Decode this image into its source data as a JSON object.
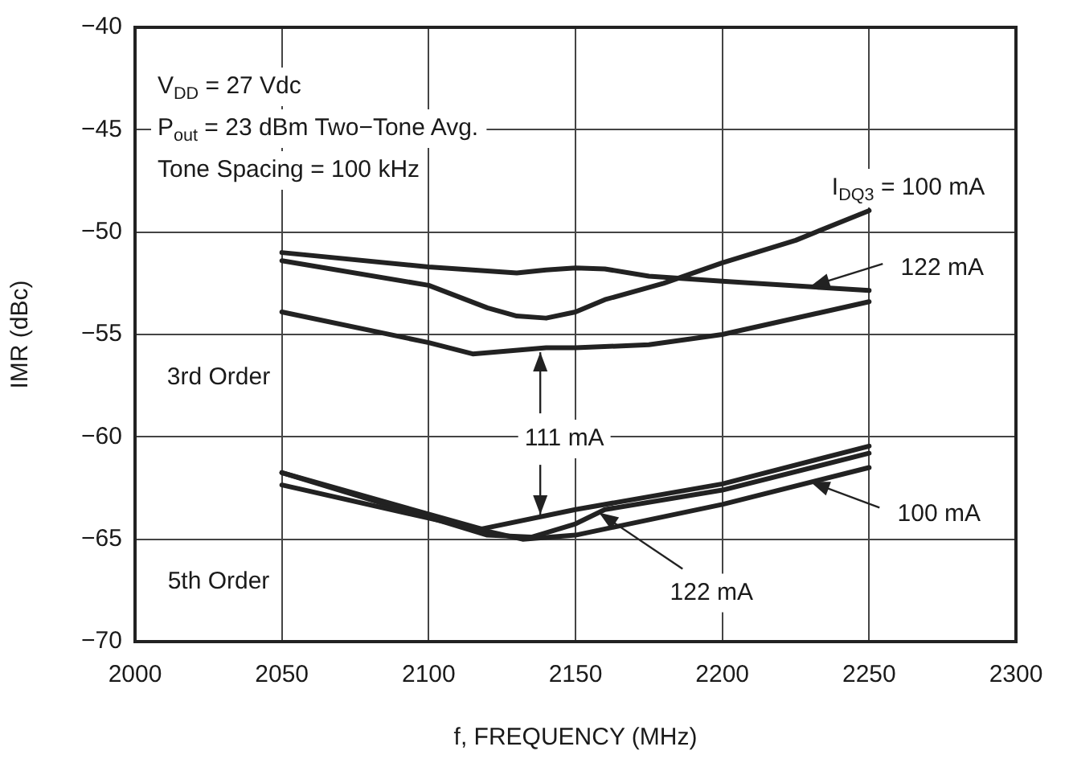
{
  "chart_data": {
    "type": "line",
    "xlabel": "f, FREQUENCY (MHz)",
    "ylabel": "IMR (dBc)",
    "xlim": [
      2000,
      2300
    ],
    "xticks": [
      2000,
      2050,
      2100,
      2150,
      2200,
      2250,
      2300
    ],
    "ylim": [
      -70,
      -40
    ],
    "yticks": [
      {
        "value": -70,
        "label": "−70"
      },
      {
        "value": -65,
        "label": "−65"
      },
      {
        "value": -60,
        "label": "−60"
      },
      {
        "value": -55,
        "label": "−55"
      },
      {
        "value": -50,
        "label": "−50"
      },
      {
        "value": -45,
        "label": "−45"
      },
      {
        "value": -40,
        "label": "−40"
      }
    ],
    "grid": true,
    "legend": false,
    "marker": "none",
    "line_style": "solid",
    "series": [
      {
        "color": "#222222",
        "x": [
          2050,
          2100,
          2130,
          2140,
          2150,
          2160,
          2175,
          2200,
          2250
        ],
        "values": [
          -51.0,
          -51.7,
          -52.0,
          -51.85,
          -51.75,
          -51.8,
          -52.15,
          -52.4,
          -52.85
        ]
      },
      {
        "color": "#222222",
        "x": [
          2050,
          2100,
          2120,
          2130,
          2140,
          2150,
          2160,
          2180,
          2200,
          2225,
          2250
        ],
        "values": [
          -51.4,
          -52.6,
          -53.7,
          -54.1,
          -54.2,
          -53.9,
          -53.3,
          -52.5,
          -51.5,
          -50.4,
          -48.95
        ]
      },
      {
        "color": "#222222",
        "x": [
          2050,
          2100,
          2115,
          2140,
          2150,
          2175,
          2200,
          2250
        ],
        "values": [
          -53.9,
          -55.4,
          -55.95,
          -55.65,
          -55.65,
          -55.5,
          -55.0,
          -53.4
        ]
      },
      {
        "color": "#222222",
        "x": [
          2050,
          2118,
          2150,
          2200,
          2250
        ],
        "values": [
          -61.75,
          -64.5,
          -63.55,
          -62.3,
          -60.45
        ]
      },
      {
        "color": "#222222",
        "x": [
          2050,
          2120,
          2135,
          2150,
          2160,
          2200,
          2250
        ],
        "values": [
          -61.75,
          -64.8,
          -64.9,
          -64.25,
          -63.55,
          -62.6,
          -60.8
        ]
      },
      {
        "color": "#222222",
        "x": [
          2050,
          2132,
          2150,
          2200,
          2250
        ],
        "values": [
          -62.35,
          -65.0,
          -64.8,
          -63.3,
          -61.5
        ]
      }
    ],
    "annotations": [
      "V$_{DD}$ = 27 Vdc",
      "P$_{out}$ = 23 dBm Two−Tone Avg.",
      "Tone Spacing = 100 kHz",
      "I$_{DQ3}$ = 100 mA",
      {
        "text": "122 mA",
        "x": 2230,
        "y": -52.65
      },
      {
        "text": "111 mA",
        "x": 2138,
        "y": -63.8
      },
      {
        "text": "100 mA",
        "x": 2230,
        "y": -62.2
      },
      {
        "text": "122 mA",
        "x": 2158,
        "y": -63.7
      },
      "3rd Order",
      "5th Order"
    ]
  }
}
